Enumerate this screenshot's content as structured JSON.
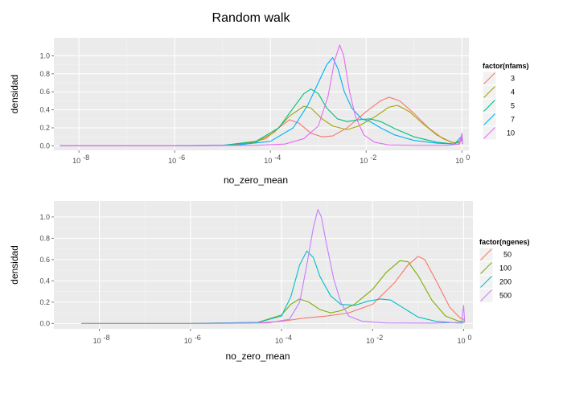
{
  "page": {
    "title": "Random walk"
  },
  "chart_data": [
    {
      "type": "line",
      "xlabel": "no_zero_mean",
      "ylabel": "densidad",
      "x_scale": "log10",
      "x_ticks": [
        1e-08,
        1e-06,
        0.0001,
        0.01,
        1
      ],
      "x_tick_labels": [
        {
          "base": "10",
          "exp": "-8"
        },
        {
          "base": "10",
          "exp": "-6"
        },
        {
          "base": "10",
          "exp": "-4"
        },
        {
          "base": "10",
          "exp": "-2"
        },
        {
          "base": "10",
          "exp": "0"
        }
      ],
      "xlim": [
        3e-09,
        1.4
      ],
      "ylim": [
        -0.05,
        1.2
      ],
      "y_ticks": [
        0,
        0.2,
        0.4,
        0.6,
        0.8,
        1.0
      ],
      "y_tick_labels": [
        "0.0",
        "0.2",
        "0.4",
        "0.6",
        "0.8",
        "1.0"
      ],
      "legend": {
        "title": "factor(nfams)",
        "position": "right"
      },
      "series": [
        {
          "name": "3",
          "color": "#F8766D",
          "points": [
            [
              4e-09,
              0
            ],
            [
              1e-06,
              0
            ],
            [
              1e-05,
              0.005
            ],
            [
              3e-05,
              0.02
            ],
            [
              8e-05,
              0.08
            ],
            [
              0.00015,
              0.2
            ],
            [
              0.00025,
              0.29
            ],
            [
              0.0004,
              0.25
            ],
            [
              0.0007,
              0.14
            ],
            [
              0.0012,
              0.1
            ],
            [
              0.002,
              0.11
            ],
            [
              0.004,
              0.2
            ],
            [
              0.01,
              0.38
            ],
            [
              0.02,
              0.5
            ],
            [
              0.03,
              0.54
            ],
            [
              0.05,
              0.5
            ],
            [
              0.1,
              0.36
            ],
            [
              0.2,
              0.2
            ],
            [
              0.4,
              0.08
            ],
            [
              0.7,
              0.03
            ],
            [
              0.9,
              0.05
            ],
            [
              1.0,
              0.12
            ],
            [
              1.03,
              0.02
            ]
          ]
        },
        {
          "name": "4",
          "color": "#A3A500",
          "points": [
            [
              4e-09,
              0
            ],
            [
              1e-06,
              0
            ],
            [
              1e-05,
              0.005
            ],
            [
              5e-05,
              0.04
            ],
            [
              0.00012,
              0.15
            ],
            [
              0.00025,
              0.33
            ],
            [
              0.0005,
              0.44
            ],
            [
              0.0007,
              0.42
            ],
            [
              0.0012,
              0.3
            ],
            [
              0.002,
              0.22
            ],
            [
              0.004,
              0.18
            ],
            [
              0.007,
              0.22
            ],
            [
              0.015,
              0.32
            ],
            [
              0.03,
              0.43
            ],
            [
              0.045,
              0.45
            ],
            [
              0.08,
              0.38
            ],
            [
              0.15,
              0.25
            ],
            [
              0.3,
              0.12
            ],
            [
              0.6,
              0.04
            ],
            [
              0.9,
              0.03
            ],
            [
              1.0,
              0.09
            ],
            [
              1.03,
              0.02
            ]
          ]
        },
        {
          "name": "5",
          "color": "#00BF7D",
          "points": [
            [
              4e-09,
              0
            ],
            [
              1e-06,
              0
            ],
            [
              1e-05,
              0.005
            ],
            [
              5e-05,
              0.05
            ],
            [
              0.00015,
              0.2
            ],
            [
              0.0003,
              0.42
            ],
            [
              0.0005,
              0.58
            ],
            [
              0.0007,
              0.63
            ],
            [
              0.001,
              0.58
            ],
            [
              0.0015,
              0.42
            ],
            [
              0.0025,
              0.3
            ],
            [
              0.004,
              0.27
            ],
            [
              0.007,
              0.29
            ],
            [
              0.012,
              0.3
            ],
            [
              0.02,
              0.27
            ],
            [
              0.04,
              0.19
            ],
            [
              0.1,
              0.1
            ],
            [
              0.3,
              0.04
            ],
            [
              0.7,
              0.02
            ],
            [
              1.0,
              0.07
            ],
            [
              1.03,
              0.02
            ]
          ]
        },
        {
          "name": "7",
          "color": "#00B0F6",
          "points": [
            [
              4e-09,
              0
            ],
            [
              1e-06,
              0
            ],
            [
              2e-05,
              0.01
            ],
            [
              0.0001,
              0.05
            ],
            [
              0.0003,
              0.2
            ],
            [
              0.0006,
              0.45
            ],
            [
              0.001,
              0.7
            ],
            [
              0.0015,
              0.9
            ],
            [
              0.002,
              0.98
            ],
            [
              0.0026,
              0.85
            ],
            [
              0.0035,
              0.6
            ],
            [
              0.005,
              0.42
            ],
            [
              0.008,
              0.3
            ],
            [
              0.012,
              0.27
            ],
            [
              0.02,
              0.2
            ],
            [
              0.04,
              0.12
            ],
            [
              0.1,
              0.06
            ],
            [
              0.3,
              0.03
            ],
            [
              0.7,
              0.02
            ],
            [
              1.0,
              0.11
            ],
            [
              1.03,
              0.02
            ]
          ]
        },
        {
          "name": "10",
          "color": "#E76BF3",
          "points": [
            [
              4e-09,
              0
            ],
            [
              1e-06,
              0
            ],
            [
              5e-05,
              0.005
            ],
            [
              0.0002,
              0.02
            ],
            [
              0.0005,
              0.08
            ],
            [
              0.001,
              0.22
            ],
            [
              0.0016,
              0.55
            ],
            [
              0.0022,
              0.95
            ],
            [
              0.0028,
              1.12
            ],
            [
              0.0034,
              1.0
            ],
            [
              0.0045,
              0.6
            ],
            [
              0.006,
              0.32
            ],
            [
              0.009,
              0.12
            ],
            [
              0.015,
              0.04
            ],
            [
              0.03,
              0.01
            ],
            [
              0.1,
              0.005
            ],
            [
              0.5,
              0.005
            ],
            [
              0.9,
              0.02
            ],
            [
              1.0,
              0.14
            ],
            [
              1.03,
              0.02
            ]
          ]
        }
      ]
    },
    {
      "type": "line",
      "xlabel": "no_zero_mean",
      "ylabel": "densidad",
      "x_scale": "log10",
      "x_ticks": [
        1e-08,
        1e-06,
        0.0001,
        0.01,
        1
      ],
      "x_tick_labels": [
        {
          "base": "10",
          "exp": "-8"
        },
        {
          "base": "10",
          "exp": "-6"
        },
        {
          "base": "10",
          "exp": "-4"
        },
        {
          "base": "10",
          "exp": "-2"
        },
        {
          "base": "10",
          "exp": "0"
        }
      ],
      "xlim": [
        1e-09,
        1.6
      ],
      "ylim": [
        -0.05,
        1.15
      ],
      "y_ticks": [
        0,
        0.2,
        0.4,
        0.6,
        0.8,
        1.0
      ],
      "y_tick_labels": [
        "0.0",
        "0.2",
        "0.4",
        "0.6",
        "0.8",
        "1.0"
      ],
      "legend": {
        "title": "factor(ngenes)",
        "position": "right"
      },
      "series": [
        {
          "name": "50",
          "color": "#F8766D",
          "points": [
            [
              4e-09,
              0
            ],
            [
              1e-06,
              0
            ],
            [
              2e-05,
              0.003
            ],
            [
              0.0001,
              0.02
            ],
            [
              0.0003,
              0.05
            ],
            [
              0.001,
              0.07
            ],
            [
              0.003,
              0.1
            ],
            [
              0.01,
              0.18
            ],
            [
              0.03,
              0.38
            ],
            [
              0.06,
              0.55
            ],
            [
              0.1,
              0.63
            ],
            [
              0.14,
              0.6
            ],
            [
              0.25,
              0.4
            ],
            [
              0.5,
              0.15
            ],
            [
              0.85,
              0.05
            ],
            [
              1.0,
              0.04
            ],
            [
              1.05,
              0.02
            ]
          ]
        },
        {
          "name": "100",
          "color": "#7CAE00",
          "points": [
            [
              4e-09,
              0
            ],
            [
              1e-06,
              0
            ],
            [
              3e-05,
              0.01
            ],
            [
              0.0001,
              0.08
            ],
            [
              0.00016,
              0.18
            ],
            [
              0.00025,
              0.23
            ],
            [
              0.0004,
              0.2
            ],
            [
              0.0007,
              0.13
            ],
            [
              0.0012,
              0.1
            ],
            [
              0.002,
              0.12
            ],
            [
              0.004,
              0.18
            ],
            [
              0.01,
              0.32
            ],
            [
              0.02,
              0.48
            ],
            [
              0.04,
              0.59
            ],
            [
              0.06,
              0.58
            ],
            [
              0.1,
              0.45
            ],
            [
              0.2,
              0.22
            ],
            [
              0.4,
              0.07
            ],
            [
              0.8,
              0.02
            ],
            [
              1.0,
              0.02
            ],
            [
              1.05,
              0.01
            ]
          ]
        },
        {
          "name": "200",
          "color": "#00BFC4",
          "points": [
            [
              4e-09,
              0
            ],
            [
              1e-06,
              0
            ],
            [
              3e-05,
              0.01
            ],
            [
              0.0001,
              0.07
            ],
            [
              0.00016,
              0.25
            ],
            [
              0.00025,
              0.55
            ],
            [
              0.00036,
              0.68
            ],
            [
              0.0005,
              0.62
            ],
            [
              0.0007,
              0.44
            ],
            [
              0.0012,
              0.26
            ],
            [
              0.002,
              0.18
            ],
            [
              0.004,
              0.17
            ],
            [
              0.008,
              0.21
            ],
            [
              0.015,
              0.23
            ],
            [
              0.025,
              0.22
            ],
            [
              0.05,
              0.14
            ],
            [
              0.1,
              0.06
            ],
            [
              0.25,
              0.02
            ],
            [
              0.7,
              0.005
            ],
            [
              1.0,
              0.005
            ]
          ]
        },
        {
          "name": "500",
          "color": "#C77CFF",
          "points": [
            [
              4e-09,
              0
            ],
            [
              1e-06,
              0
            ],
            [
              5e-05,
              0.005
            ],
            [
              0.00015,
              0.04
            ],
            [
              0.00025,
              0.2
            ],
            [
              0.00036,
              0.55
            ],
            [
              0.0005,
              0.9
            ],
            [
              0.00063,
              1.07
            ],
            [
              0.00075,
              1.0
            ],
            [
              0.001,
              0.72
            ],
            [
              0.0014,
              0.42
            ],
            [
              0.002,
              0.2
            ],
            [
              0.003,
              0.07
            ],
            [
              0.006,
              0.02
            ],
            [
              0.02,
              0.005
            ],
            [
              0.2,
              0.003
            ],
            [
              0.9,
              0.01
            ],
            [
              1.0,
              0.17
            ],
            [
              1.05,
              0.02
            ]
          ]
        }
      ]
    }
  ]
}
